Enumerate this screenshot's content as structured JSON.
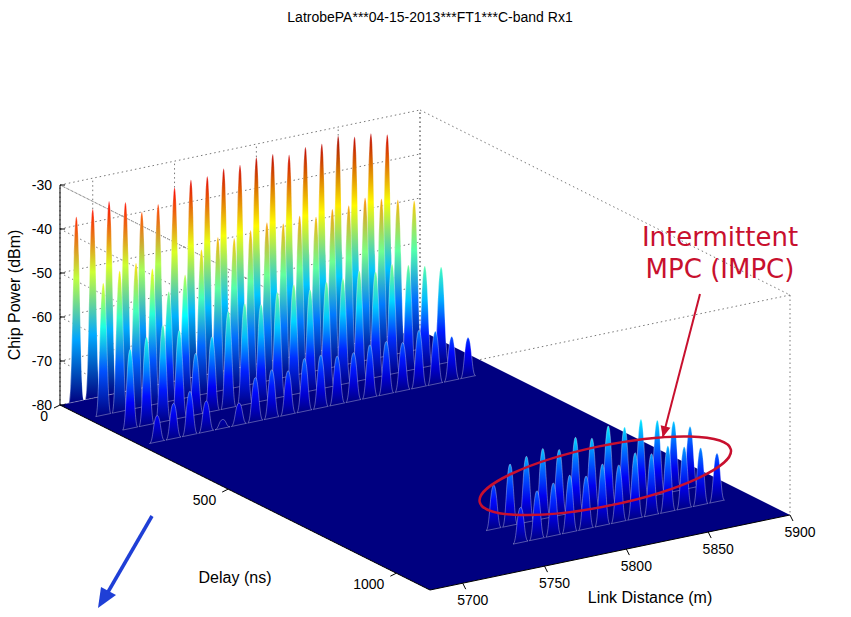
{
  "chart_data": {
    "type": "waterfall3d",
    "title": "LatrobePA***04-15-2013***FT1***C-band Rx1",
    "x_label": "Link Distance (m)",
    "y_label": "Delay (ns)",
    "z_label": "Chip Power (dBm)",
    "x": [
      5690,
      5700,
      5710,
      5720,
      5730,
      5740,
      5750,
      5760,
      5770,
      5780,
      5790,
      5800,
      5810,
      5820,
      5830,
      5840,
      5850,
      5860,
      5870,
      5880,
      5890
    ],
    "xlim": [
      5680,
      5900
    ],
    "xticks": [
      5700,
      5750,
      5800,
      5850,
      5900
    ],
    "delays": [
      0,
      80,
      160,
      240,
      900,
      980
    ],
    "ylim": [
      0,
      1100
    ],
    "yticks": [
      0,
      500,
      1000
    ],
    "zlim": [
      -80,
      -30
    ],
    "zticks": [
      -80,
      -70,
      -60,
      -50,
      -40,
      -30
    ],
    "cells": [
      [
        -38,
        -37,
        -36,
        -37,
        -40,
        -39,
        -36,
        -35,
        -35,
        -34,
        -34,
        -33,
        -33,
        -34,
        -33,
        -33,
        -32,
        -33,
        -33,
        -34,
        null
      ],
      [
        -50,
        -48,
        -47,
        -49,
        -55,
        -52,
        -47,
        -45,
        -46,
        -45,
        -44,
        -45,
        -44,
        -45,
        -44,
        -44,
        -43,
        -44,
        -45,
        -46,
        null
      ],
      [
        -62,
        -60,
        -58,
        -60,
        -66,
        -63,
        -58,
        -57,
        -58,
        -56,
        -55,
        -57,
        -56,
        -56,
        -55,
        -56,
        -55,
        -56,
        -57,
        -58,
        null
      ],
      [
        -74,
        -72,
        -70,
        -73,
        -78,
        -75,
        -70,
        -69,
        -70,
        -68,
        -68,
        -69,
        -69,
        -68,
        -68,
        -69,
        -67,
        -68,
        -70,
        -71,
        null
      ],
      [
        null,
        null,
        null,
        null,
        null,
        null,
        null,
        -70,
        -66,
        -65,
        -64,
        -65,
        -63,
        -64,
        -62,
        -63,
        -62,
        -63,
        -64,
        -66,
        null
      ],
      [
        null,
        null,
        null,
        null,
        null,
        null,
        null,
        -72,
        -69,
        -68,
        -67,
        -68,
        -66,
        -67,
        -65,
        -66,
        -65,
        -66,
        -67,
        -69,
        null
      ]
    ],
    "grid": true,
    "annotations": [
      {
        "text": "Intermittent MPC (IMPC)"
      }
    ]
  }
}
